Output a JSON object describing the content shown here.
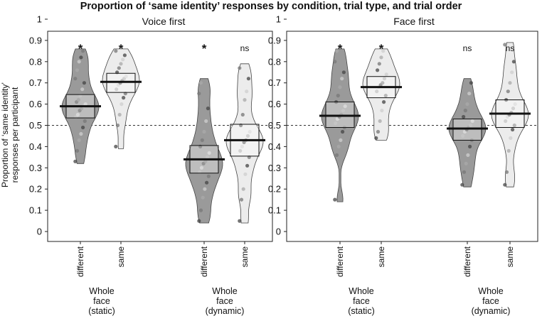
{
  "figure_title": "Proportion of ‘same identity’ responses by condition, trial type, and trial order",
  "y_axis_label": [
    "Proportion of ‘same identity’",
    "responses per participant"
  ],
  "colors": {
    "different": "#9a9a9a",
    "same": "#ececec",
    "outline": "#444444",
    "median": "#111111"
  },
  "chart_data": [
    {
      "type": "pirate",
      "title": "Voice first",
      "ylim": [
        0,
        1
      ],
      "yticks": [
        "0",
        "0.1",
        "0.2",
        "0.3",
        "0.4",
        "0.5",
        "0.6",
        "0.7",
        "0.8",
        "0.9",
        "1"
      ],
      "reference_line": 0.5,
      "groups": [
        {
          "label": [
            "Whole",
            "face",
            "(static)"
          ],
          "bars": [
            {
              "trial_type": "different",
              "median": 0.59,
              "box_low": 0.535,
              "box_high": 0.645,
              "min": 0.32,
              "max": 0.86,
              "signif": "*",
              "points": [
                0.33,
                0.38,
                0.43,
                0.46,
                0.49,
                0.52,
                0.54,
                0.55,
                0.57,
                0.58,
                0.59,
                0.6,
                0.61,
                0.62,
                0.64,
                0.67,
                0.7,
                0.72,
                0.76,
                0.8,
                0.82,
                0.85
              ]
            },
            {
              "trial_type": "same",
              "median": 0.705,
              "box_low": 0.655,
              "box_high": 0.745,
              "min": 0.39,
              "max": 0.86,
              "signif": "*",
              "points": [
                0.4,
                0.5,
                0.55,
                0.6,
                0.63,
                0.65,
                0.67,
                0.69,
                0.7,
                0.71,
                0.72,
                0.73,
                0.75,
                0.77,
                0.79,
                0.81,
                0.83,
                0.85
              ]
            }
          ]
        },
        {
          "label": [
            "Whole",
            "face",
            "(dynamic)"
          ],
          "bars": [
            {
              "trial_type": "different",
              "median": 0.34,
              "box_low": 0.275,
              "box_high": 0.405,
              "min": 0.04,
              "max": 0.72,
              "signif": "*",
              "points": [
                0.05,
                0.1,
                0.16,
                0.2,
                0.23,
                0.26,
                0.28,
                0.3,
                0.32,
                0.33,
                0.35,
                0.37,
                0.4,
                0.43,
                0.47,
                0.52,
                0.58,
                0.65,
                0.7
              ]
            },
            {
              "trial_type": "same",
              "median": 0.43,
              "box_low": 0.355,
              "box_high": 0.505,
              "min": 0.04,
              "max": 0.79,
              "signif": "ns",
              "points": [
                0.05,
                0.15,
                0.2,
                0.27,
                0.31,
                0.35,
                0.38,
                0.4,
                0.42,
                0.43,
                0.45,
                0.47,
                0.5,
                0.55,
                0.62,
                0.66,
                0.72,
                0.77
              ]
            }
          ]
        }
      ]
    },
    {
      "type": "pirate",
      "title": "Face first",
      "ylim": [
        0,
        1
      ],
      "yticks": [
        "0",
        "0.1",
        "0.2",
        "0.3",
        "0.4",
        "0.5",
        "0.6",
        "0.7",
        "0.8",
        "0.9",
        "1"
      ],
      "reference_line": 0.5,
      "groups": [
        {
          "label": [
            "Whole",
            "face",
            "(static)"
          ],
          "bars": [
            {
              "trial_type": "different",
              "median": 0.545,
              "box_low": 0.49,
              "box_high": 0.61,
              "min": 0.14,
              "max": 0.86,
              "signif": "*",
              "points": [
                0.15,
                0.36,
                0.4,
                0.43,
                0.47,
                0.49,
                0.51,
                0.53,
                0.54,
                0.55,
                0.57,
                0.59,
                0.61,
                0.64,
                0.68,
                0.72,
                0.75,
                0.8,
                0.85
              ]
            },
            {
              "trial_type": "same",
              "median": 0.68,
              "box_low": 0.63,
              "box_high": 0.73,
              "min": 0.43,
              "max": 0.86,
              "signif": "*",
              "points": [
                0.44,
                0.47,
                0.52,
                0.57,
                0.61,
                0.64,
                0.66,
                0.68,
                0.69,
                0.7,
                0.72,
                0.74,
                0.76,
                0.79,
                0.82,
                0.85
              ]
            }
          ]
        },
        {
          "label": [
            "Whole",
            "face",
            "(dynamic)"
          ],
          "bars": [
            {
              "trial_type": "different",
              "median": 0.485,
              "box_low": 0.43,
              "box_high": 0.53,
              "min": 0.21,
              "max": 0.72,
              "signif": "ns",
              "points": [
                0.22,
                0.28,
                0.32,
                0.36,
                0.4,
                0.43,
                0.45,
                0.47,
                0.48,
                0.49,
                0.5,
                0.52,
                0.54,
                0.57,
                0.6,
                0.65,
                0.7
              ]
            },
            {
              "trial_type": "same",
              "median": 0.555,
              "box_low": 0.49,
              "box_high": 0.62,
              "min": 0.21,
              "max": 0.89,
              "signif": "ns",
              "points": [
                0.22,
                0.28,
                0.38,
                0.44,
                0.48,
                0.5,
                0.52,
                0.54,
                0.55,
                0.56,
                0.58,
                0.6,
                0.62,
                0.66,
                0.7,
                0.75,
                0.8,
                0.88
              ]
            }
          ]
        }
      ]
    }
  ]
}
